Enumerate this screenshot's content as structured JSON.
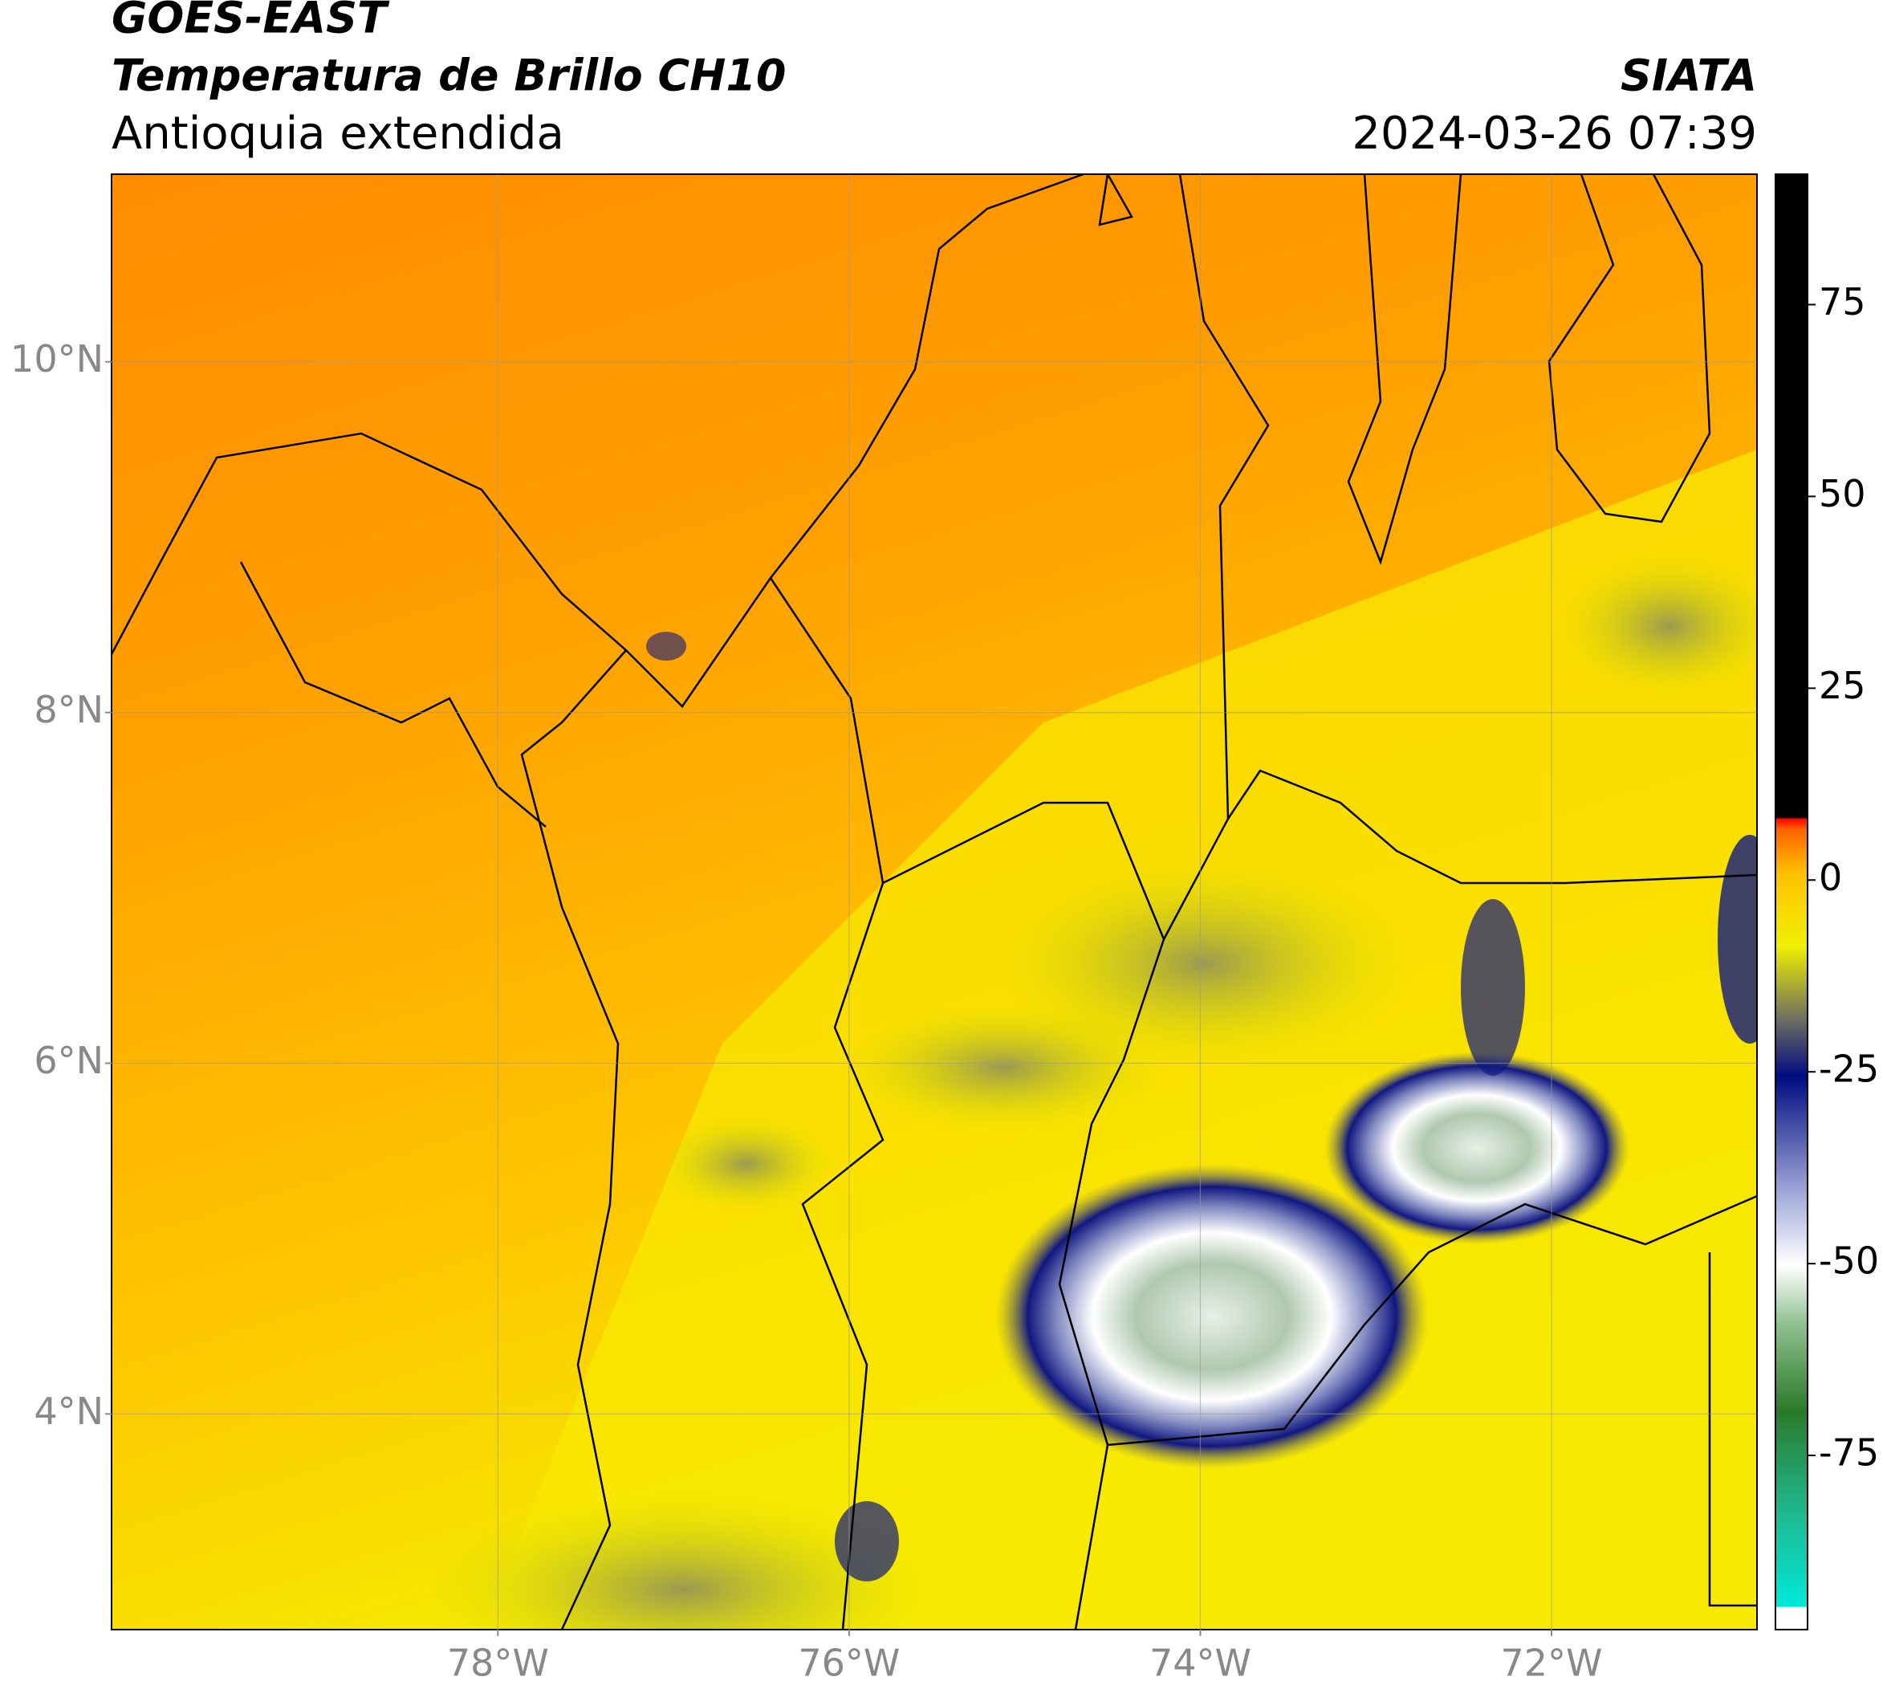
{
  "header": {
    "title": "GOES-EAST",
    "subtitle": "Temperatura de Brillo CH10",
    "region": "Antioquia extendida",
    "source": "SIATA",
    "datetime": "2024-03-26 07:39"
  },
  "map": {
    "xlim": [
      -80.2,
      -70.83
    ],
    "ylim": [
      2.77,
      11.07
    ],
    "xticks": [
      {
        "value": -78,
        "label": "78°W"
      },
      {
        "value": -76,
        "label": "76°W"
      },
      {
        "value": -74,
        "label": "74°W"
      },
      {
        "value": -72,
        "label": "72°W"
      }
    ],
    "yticks": [
      {
        "value": 4,
        "label": "4°N"
      },
      {
        "value": 6,
        "label": "6°N"
      },
      {
        "value": 8,
        "label": "8°N"
      },
      {
        "value": 10,
        "label": "10°N"
      }
    ],
    "grid": true
  },
  "colorbar": {
    "lim": [
      -97.7,
      92
    ],
    "ticks": [
      -75,
      -50,
      -25,
      0,
      25,
      50,
      75
    ]
  }
}
